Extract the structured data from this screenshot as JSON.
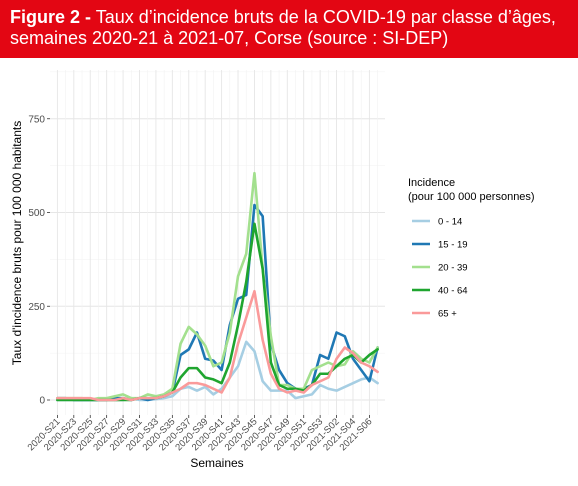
{
  "header": {
    "figure_label": "Figure 2 -",
    "title_line1": " Taux d’incidence bruts de la COVID-19 par classe d’âges,",
    "title_line2": "semaines 2020-21 à 2021-07, Corse (source : SI-DEP)",
    "accent_color": "#e30613"
  },
  "chart_data": {
    "type": "line",
    "xlabel": "Semaines",
    "ylabel": "Taux d'incidence bruts pour 100 000 habitants",
    "ylim": [
      -40,
      880
    ],
    "yticks": [
      0,
      250,
      500,
      750
    ],
    "x_tick_labels": [
      "2020-S21",
      "2020-S23",
      "2020-S25",
      "2020-S27",
      "2020-S29",
      "2020-S31",
      "2020-S33",
      "2020-S35",
      "2020-S37",
      "2020-S39",
      "2020-S41",
      "2020-S43",
      "2020-S45",
      "2020-S47",
      "2020-S49",
      "2020-S51",
      "2020-S53",
      "2021-S02",
      "2021-S04",
      "2021-S06"
    ],
    "x": [
      "2020-S21",
      "2020-S22",
      "2020-S23",
      "2020-S24",
      "2020-S25",
      "2020-S26",
      "2020-S27",
      "2020-S28",
      "2020-S29",
      "2020-S30",
      "2020-S31",
      "2020-S32",
      "2020-S33",
      "2020-S34",
      "2020-S35",
      "2020-S36",
      "2020-S37",
      "2020-S38",
      "2020-S39",
      "2020-S40",
      "2020-S41",
      "2020-S42",
      "2020-S43",
      "2020-S44",
      "2020-S45",
      "2020-S46",
      "2020-S47",
      "2020-S48",
      "2020-S49",
      "2020-S50",
      "2020-S51",
      "2020-S52",
      "2020-S53",
      "2021-S01",
      "2021-S02",
      "2021-S03",
      "2021-S04",
      "2021-S05",
      "2021-S06",
      "2021-S07"
    ],
    "grid": true,
    "legend_position": "right",
    "legend_title_line1": "Incidence",
    "legend_title_line2": "(pour 100 000 personnes)",
    "series": [
      {
        "name": "0 - 14",
        "color": "#a6cee3",
        "values": [
          0,
          0,
          0,
          0,
          0,
          0,
          0,
          0,
          0,
          5,
          0,
          0,
          2,
          5,
          10,
          30,
          35,
          25,
          35,
          15,
          30,
          60,
          90,
          155,
          130,
          50,
          25,
          25,
          25,
          5,
          10,
          15,
          40,
          30,
          25,
          35,
          45,
          55,
          60,
          45
        ]
      },
      {
        "name": "15 - 19",
        "color": "#1f78b4",
        "values": [
          5,
          5,
          0,
          0,
          0,
          0,
          0,
          5,
          5,
          0,
          5,
          0,
          5,
          10,
          20,
          120,
          135,
          180,
          110,
          105,
          80,
          200,
          270,
          280,
          520,
          490,
          150,
          80,
          45,
          30,
          30,
          40,
          120,
          110,
          180,
          170,
          110,
          80,
          50,
          140
        ]
      },
      {
        "name": "20 - 39",
        "color": "#a3e08e",
        "values": [
          5,
          5,
          5,
          5,
          0,
          5,
          5,
          10,
          15,
          5,
          5,
          15,
          10,
          15,
          30,
          150,
          195,
          175,
          145,
          90,
          100,
          180,
          330,
          390,
          605,
          350,
          170,
          40,
          40,
          30,
          30,
          80,
          90,
          100,
          90,
          95,
          130,
          110,
          100,
          140
        ]
      },
      {
        "name": "40 - 64",
        "color": "#1fa52f",
        "values": [
          0,
          0,
          0,
          0,
          0,
          0,
          0,
          0,
          0,
          0,
          5,
          5,
          5,
          10,
          20,
          60,
          85,
          85,
          60,
          55,
          45,
          100,
          200,
          315,
          470,
          350,
          100,
          40,
          30,
          30,
          25,
          40,
          70,
          70,
          90,
          110,
          120,
          100,
          120,
          135
        ]
      },
      {
        "name": "65 +",
        "color": "#fa9a9a",
        "values": [
          5,
          5,
          5,
          5,
          5,
          0,
          0,
          0,
          5,
          0,
          5,
          5,
          5,
          10,
          20,
          30,
          45,
          45,
          40,
          30,
          20,
          60,
          150,
          220,
          290,
          160,
          70,
          30,
          20,
          25,
          20,
          40,
          50,
          60,
          110,
          140,
          125,
          100,
          90,
          75
        ]
      }
    ]
  }
}
